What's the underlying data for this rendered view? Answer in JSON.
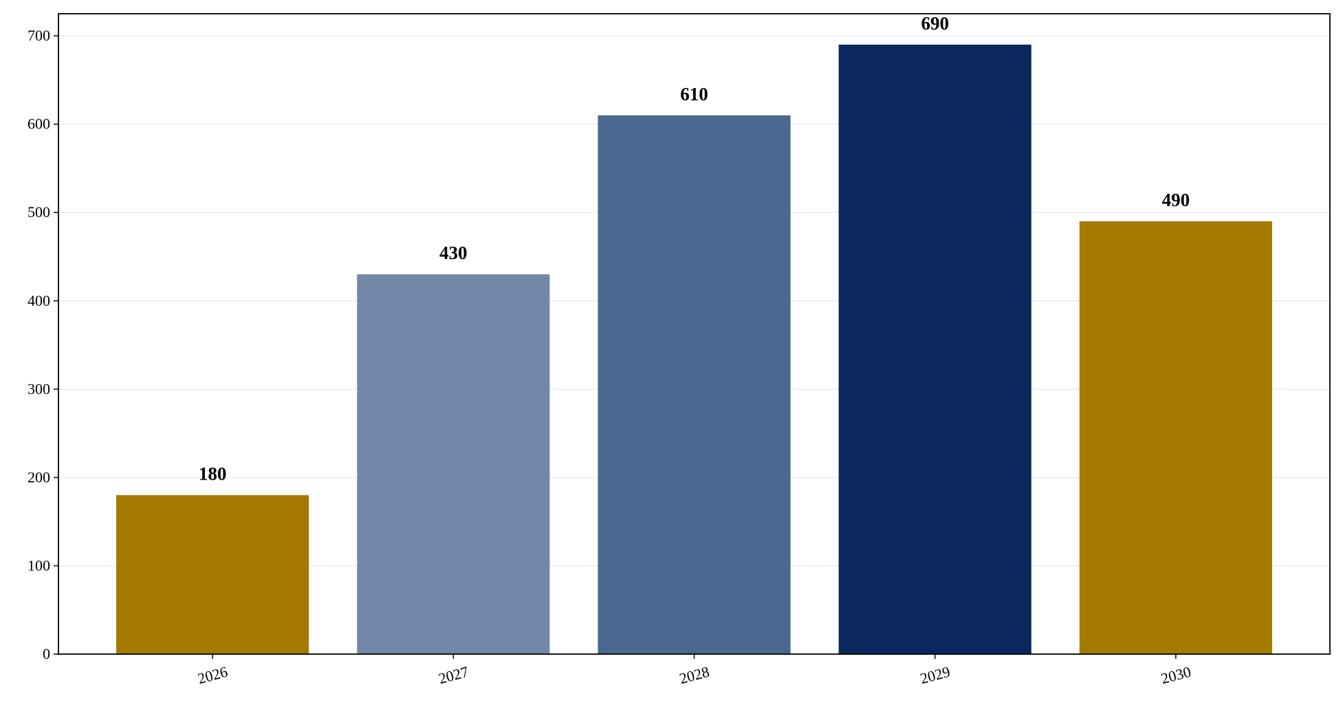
{
  "chart_data": {
    "type": "bar",
    "categories": [
      "2026",
      "2027",
      "2028",
      "2029",
      "2030"
    ],
    "values": [
      180,
      430,
      610,
      690,
      490
    ],
    "colors": [
      "#a57a00",
      "#7388a8",
      "#4a6890",
      "#0a285e",
      "#a57a00"
    ],
    "ylim": [
      0,
      725
    ],
    "yticks": [
      0,
      100,
      200,
      300,
      400,
      500,
      600,
      700
    ],
    "grid": true
  }
}
